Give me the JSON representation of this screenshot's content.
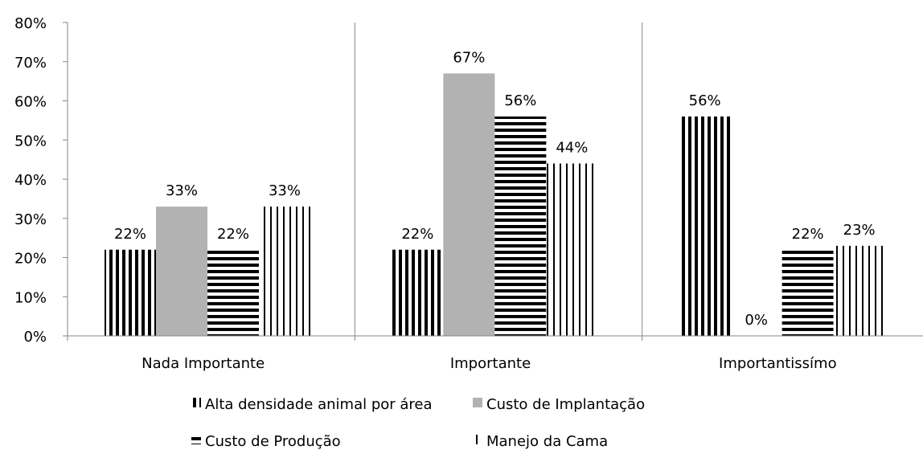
{
  "chart_data": {
    "type": "bar",
    "categories": [
      "Nada Importante",
      "Importante",
      "Importantissímo"
    ],
    "series": [
      {
        "name": "Alta densidade animal por área",
        "values": [
          22,
          22,
          56
        ],
        "labels": [
          "22%",
          "22%",
          "56%"
        ],
        "pattern": "vertical-dense",
        "color": "#000000"
      },
      {
        "name": "Custo de Implantação",
        "values": [
          33,
          67,
          0
        ],
        "labels": [
          "33%",
          "67%",
          "0%"
        ],
        "pattern": "solid",
        "color": "#b2b2b2"
      },
      {
        "name": "Custo de Produção",
        "values": [
          22,
          56,
          22
        ],
        "labels": [
          "22%",
          "56%",
          "22%"
        ],
        "pattern": "horizontal-stripes",
        "color": "#000000"
      },
      {
        "name": "Manejo da Cama",
        "values": [
          33,
          44,
          23
        ],
        "labels": [
          "33%",
          "44%",
          "23%"
        ],
        "pattern": "vertical-sparse",
        "color": "#000000"
      }
    ],
    "ylim": [
      0,
      80
    ],
    "yticks": [
      "0%",
      "10%",
      "20%",
      "30%",
      "40%",
      "50%",
      "60%",
      "70%",
      "80%"
    ],
    "ytick_values": [
      0,
      10,
      20,
      30,
      40,
      50,
      60,
      70,
      80
    ],
    "title": "",
    "xlabel": "",
    "ylabel": "",
    "grid": false,
    "legend_position": "bottom"
  }
}
